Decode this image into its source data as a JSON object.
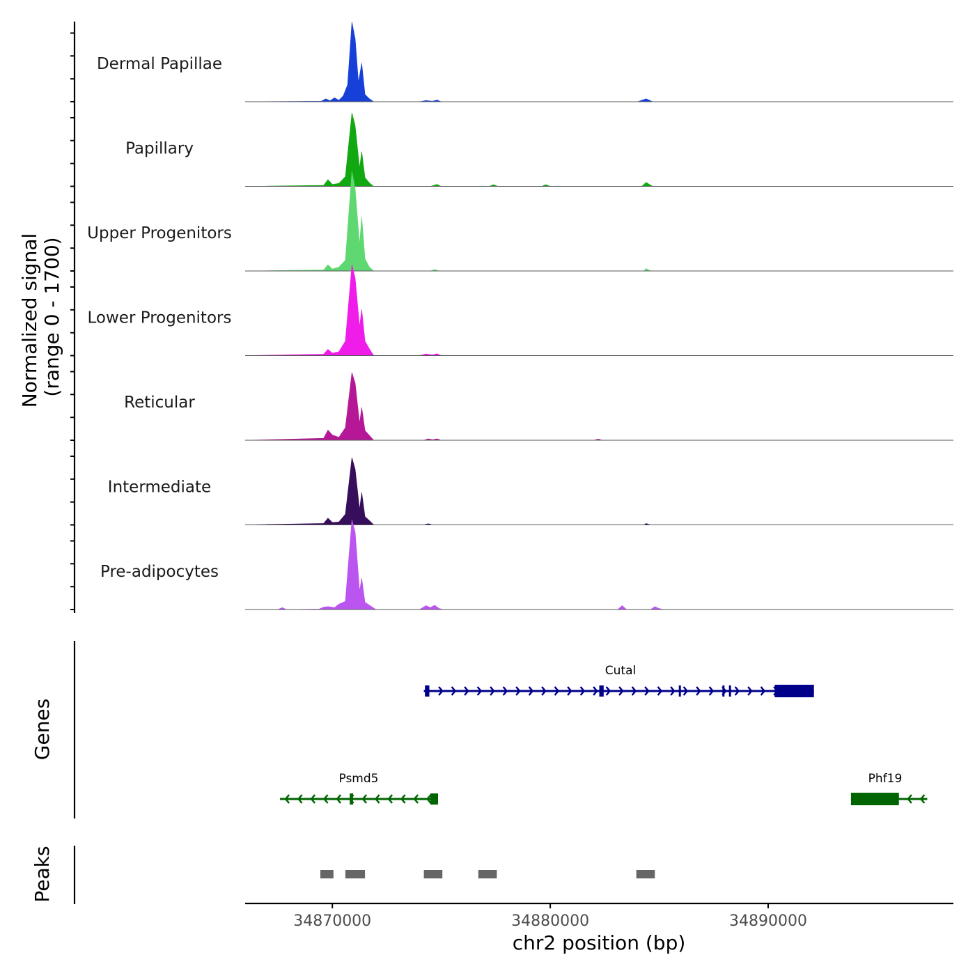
{
  "chart_data": {
    "type": "area",
    "title": "",
    "xlabel": "chr2 position (bp)",
    "ylabel": "Normalized signal",
    "ylabel_range": "(range 0 - 1700)",
    "xlim": [
      34866000,
      34898500
    ],
    "ylim": [
      0,
      1700
    ],
    "x_ticks": [
      34870000,
      34880000,
      34890000
    ],
    "x_tick_labels": [
      "34870000",
      "34880000",
      "34890000"
    ],
    "tracks": [
      {
        "name": "Dermal Papillae",
        "color": "#1640d8",
        "points": [
          [
            34866000,
            0
          ],
          [
            34869500,
            10
          ],
          [
            34869700,
            60
          ],
          [
            34869900,
            20
          ],
          [
            34870100,
            80
          ],
          [
            34870300,
            30
          ],
          [
            34870500,
            120
          ],
          [
            34870700,
            350
          ],
          [
            34870900,
            1650
          ],
          [
            34871050,
            1300
          ],
          [
            34871200,
            400
          ],
          [
            34871350,
            800
          ],
          [
            34871500,
            150
          ],
          [
            34871700,
            60
          ],
          [
            34871900,
            0
          ],
          [
            34874000,
            0
          ],
          [
            34874300,
            25
          ],
          [
            34874600,
            10
          ],
          [
            34874800,
            35
          ],
          [
            34875000,
            0
          ],
          [
            34884000,
            0
          ],
          [
            34884400,
            60
          ],
          [
            34884700,
            0
          ],
          [
            34898500,
            0
          ]
        ]
      },
      {
        "name": "Papillary",
        "color": "#11a811",
        "points": [
          [
            34866000,
            0
          ],
          [
            34869600,
            20
          ],
          [
            34869800,
            140
          ],
          [
            34870000,
            40
          ],
          [
            34870300,
            60
          ],
          [
            34870600,
            200
          ],
          [
            34870900,
            1520
          ],
          [
            34871050,
            1250
          ],
          [
            34871250,
            380
          ],
          [
            34871350,
            720
          ],
          [
            34871500,
            180
          ],
          [
            34871700,
            70
          ],
          [
            34871900,
            0
          ],
          [
            34874500,
            0
          ],
          [
            34874800,
            40
          ],
          [
            34875000,
            0
          ],
          [
            34877200,
            0
          ],
          [
            34877400,
            35
          ],
          [
            34877600,
            0
          ],
          [
            34879600,
            0
          ],
          [
            34879800,
            35
          ],
          [
            34880000,
            0
          ],
          [
            34884200,
            0
          ],
          [
            34884400,
            80
          ],
          [
            34884700,
            0
          ],
          [
            34898500,
            0
          ]
        ]
      },
      {
        "name": "Upper Progenitors",
        "color": "#5fd872",
        "points": [
          [
            34866000,
            0
          ],
          [
            34869600,
            20
          ],
          [
            34869800,
            130
          ],
          [
            34870000,
            40
          ],
          [
            34870300,
            80
          ],
          [
            34870600,
            220
          ],
          [
            34870900,
            2060
          ],
          [
            34871050,
            1700
          ],
          [
            34871250,
            550
          ],
          [
            34871350,
            1120
          ],
          [
            34871500,
            250
          ],
          [
            34871700,
            80
          ],
          [
            34871900,
            0
          ],
          [
            34874500,
            0
          ],
          [
            34874700,
            30
          ],
          [
            34874900,
            0
          ],
          [
            34884300,
            0
          ],
          [
            34884400,
            50
          ],
          [
            34884600,
            0
          ],
          [
            34898500,
            0
          ]
        ]
      },
      {
        "name": "Lower Progenitors",
        "color": "#f01cea",
        "points": [
          [
            34866000,
            0
          ],
          [
            34869600,
            30
          ],
          [
            34869800,
            130
          ],
          [
            34870000,
            50
          ],
          [
            34870300,
            80
          ],
          [
            34870600,
            300
          ],
          [
            34870900,
            1880
          ],
          [
            34871050,
            1600
          ],
          [
            34871250,
            600
          ],
          [
            34871350,
            960
          ],
          [
            34871500,
            300
          ],
          [
            34871700,
            140
          ],
          [
            34871900,
            0
          ],
          [
            34874000,
            0
          ],
          [
            34874300,
            35
          ],
          [
            34874600,
            15
          ],
          [
            34874800,
            40
          ],
          [
            34875000,
            0
          ],
          [
            34898500,
            0
          ]
        ]
      },
      {
        "name": "Reticular",
        "color": "#b51797",
        "points": [
          [
            34866000,
            0
          ],
          [
            34869600,
            40
          ],
          [
            34869800,
            210
          ],
          [
            34870000,
            110
          ],
          [
            34870300,
            60
          ],
          [
            34870600,
            260
          ],
          [
            34870900,
            1400
          ],
          [
            34871050,
            1180
          ],
          [
            34871250,
            350
          ],
          [
            34871350,
            680
          ],
          [
            34871500,
            200
          ],
          [
            34871700,
            100
          ],
          [
            34871900,
            0
          ],
          [
            34874200,
            0
          ],
          [
            34874400,
            30
          ],
          [
            34874600,
            10
          ],
          [
            34874800,
            30
          ],
          [
            34875000,
            0
          ],
          [
            34882000,
            0
          ],
          [
            34882200,
            25
          ],
          [
            34882400,
            0
          ],
          [
            34898500,
            0
          ]
        ]
      },
      {
        "name": "Intermediate",
        "color": "#360e5c",
        "points": [
          [
            34866000,
            0
          ],
          [
            34869600,
            30
          ],
          [
            34869800,
            140
          ],
          [
            34870000,
            50
          ],
          [
            34870300,
            60
          ],
          [
            34870600,
            220
          ],
          [
            34870900,
            1390
          ],
          [
            34871050,
            1150
          ],
          [
            34871250,
            320
          ],
          [
            34871350,
            670
          ],
          [
            34871500,
            170
          ],
          [
            34871700,
            90
          ],
          [
            34871900,
            0
          ],
          [
            34874200,
            0
          ],
          [
            34874400,
            25
          ],
          [
            34874600,
            0
          ],
          [
            34884300,
            0
          ],
          [
            34884400,
            30
          ],
          [
            34884600,
            0
          ],
          [
            34898500,
            0
          ]
        ]
      },
      {
        "name": "Pre-adipocytes",
        "color": "#bb55ef",
        "points": [
          [
            34866000,
            0
          ],
          [
            34867500,
            0
          ],
          [
            34867700,
            40
          ],
          [
            34867900,
            0
          ],
          [
            34869400,
            10
          ],
          [
            34869600,
            50
          ],
          [
            34869800,
            60
          ],
          [
            34870100,
            40
          ],
          [
            34870300,
            110
          ],
          [
            34870600,
            170
          ],
          [
            34870900,
            1860
          ],
          [
            34871050,
            1600
          ],
          [
            34871250,
            380
          ],
          [
            34871350,
            650
          ],
          [
            34871500,
            150
          ],
          [
            34871800,
            60
          ],
          [
            34872000,
            0
          ],
          [
            34874000,
            0
          ],
          [
            34874300,
            80
          ],
          [
            34874500,
            40
          ],
          [
            34874700,
            90
          ],
          [
            34874900,
            20
          ],
          [
            34875100,
            0
          ],
          [
            34883100,
            0
          ],
          [
            34883300,
            80
          ],
          [
            34883500,
            0
          ],
          [
            34884600,
            0
          ],
          [
            34884800,
            60
          ],
          [
            34885000,
            20
          ],
          [
            34885200,
            0
          ],
          [
            34898500,
            0
          ]
        ]
      }
    ],
    "genes": [
      {
        "name": "Psmd5",
        "strand": "-",
        "color": "#006400",
        "start": 34867600,
        "end": 34874850,
        "exons": [
          [
            34870800,
            34870950
          ],
          [
            34874500,
            34874850
          ]
        ]
      },
      {
        "name": "Cutal",
        "strand": "+",
        "color": "#00008b",
        "start": 34874200,
        "end": 34892100,
        "exons": [
          [
            34874250,
            34874450
          ],
          [
            34882250,
            34882450
          ],
          [
            34885900,
            34885950
          ],
          [
            34887900,
            34887950
          ],
          [
            34888200,
            34888250
          ],
          [
            34890300,
            34892100
          ]
        ]
      },
      {
        "name": "Phf19",
        "strand": "-",
        "color": "#006400",
        "start": 34893800,
        "end": 34897300,
        "exons": [
          [
            34893800,
            34896000
          ]
        ]
      }
    ],
    "peaks": [
      [
        34869450,
        34870050
      ],
      [
        34870600,
        34871500
      ],
      [
        34874200,
        34875050
      ],
      [
        34876700,
        34877550
      ],
      [
        34883950,
        34884800
      ]
    ],
    "panel_titles": {
      "genes": "Genes",
      "peaks": "Peaks"
    }
  }
}
